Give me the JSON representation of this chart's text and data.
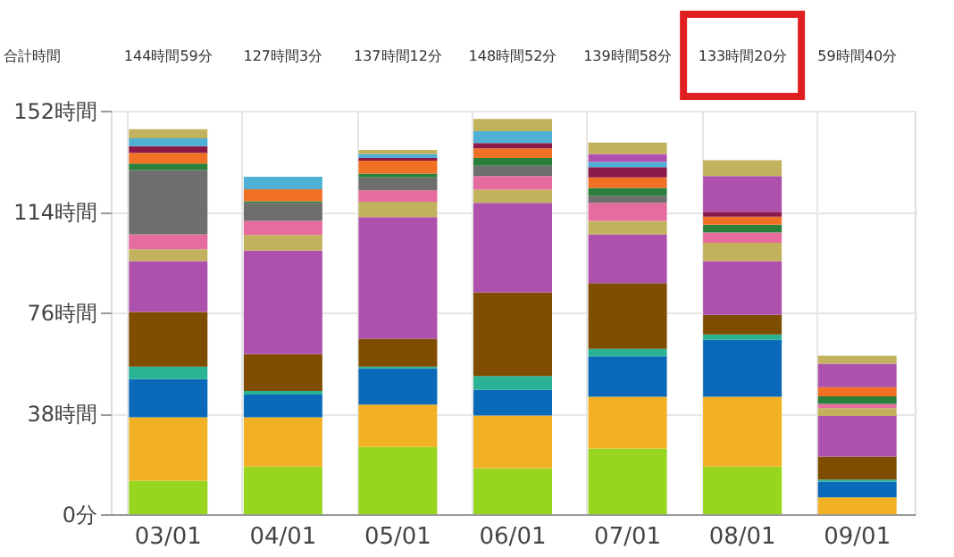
{
  "chart_data": {
    "type": "bar",
    "stacked": true,
    "categories": [
      "03/01",
      "04/01",
      "05/01",
      "06/01",
      "07/01",
      "08/01",
      "09/01"
    ],
    "series": [
      {
        "color": "#97d51e",
        "values": [
          12.6,
          17.9,
          25.3,
          17.3,
          24.7,
          17.9,
          0
        ]
      },
      {
        "color": "#f2b124",
        "values": [
          23.9,
          18.6,
          16.0,
          19.9,
          19.5,
          26.3,
          6.3
        ]
      },
      {
        "color": "#0a6ab9",
        "values": [
          14.4,
          8.6,
          13.6,
          9.7,
          15.2,
          21.5,
          6.0
        ]
      },
      {
        "color": "#2ab295",
        "values": [
          4.7,
          1.3,
          0.7,
          5.1,
          2.9,
          2.0,
          0.7
        ]
      },
      {
        "color": "#7f4d00",
        "values": [
          20.6,
          13.9,
          10.5,
          31.6,
          24.7,
          7.4,
          8.7
        ]
      },
      {
        "color": "#ad51ad",
        "values": [
          19.1,
          39.0,
          45.8,
          33.7,
          18.4,
          20.2,
          15.3
        ]
      },
      {
        "color": "#c3b25d",
        "values": [
          4.5,
          5.9,
          5.8,
          4.9,
          5.1,
          6.9,
          2.9
        ]
      },
      {
        "color": "#e66b9e",
        "values": [
          5.6,
          5.3,
          4.3,
          5.2,
          6.8,
          3.9,
          1.6
        ]
      },
      {
        "color": "#6e6e6e",
        "values": [
          24.2,
          6.8,
          4.9,
          3.8,
          2.7,
          0,
          0
        ]
      },
      {
        "color": "#2a7f3a",
        "values": [
          2.5,
          0.6,
          1.4,
          3.0,
          2.9,
          2.9,
          2.9
        ]
      },
      {
        "color": "#f07124",
        "values": [
          4.0,
          4.5,
          4.9,
          3.6,
          4.0,
          3.1,
          3.4
        ]
      },
      {
        "color": "#8b1a4a",
        "values": [
          2.5,
          0,
          1.0,
          2.0,
          3.8,
          1.8,
          0
        ]
      },
      {
        "color": "#4fb0d6",
        "values": [
          3.0,
          4.7,
          1.5,
          4.5,
          2.0,
          0,
          0
        ]
      },
      {
        "color": "#ad51ad",
        "values": [
          0,
          0,
          0,
          0,
          3.0,
          13.5,
          8.9
        ]
      },
      {
        "color": "#c3b25d",
        "values": [
          3.4,
          0,
          1.5,
          4.6,
          4.3,
          5.9,
          3.0
        ]
      }
    ],
    "ylim": [
      0,
      152
    ],
    "yticks": [
      {
        "value": 0,
        "label": "0分"
      },
      {
        "value": 38,
        "label": "38時間"
      },
      {
        "value": 76,
        "label": "76時間"
      },
      {
        "value": 114,
        "label": "114時間"
      },
      {
        "value": 152,
        "label": "152時間"
      }
    ],
    "grid": true,
    "annotations": [
      "合計時間",
      "144時間59分",
      "127時間3分",
      "137時間12分",
      "148時間52分",
      "139時間58分",
      "133時間20分",
      "59時間40分"
    ]
  }
}
